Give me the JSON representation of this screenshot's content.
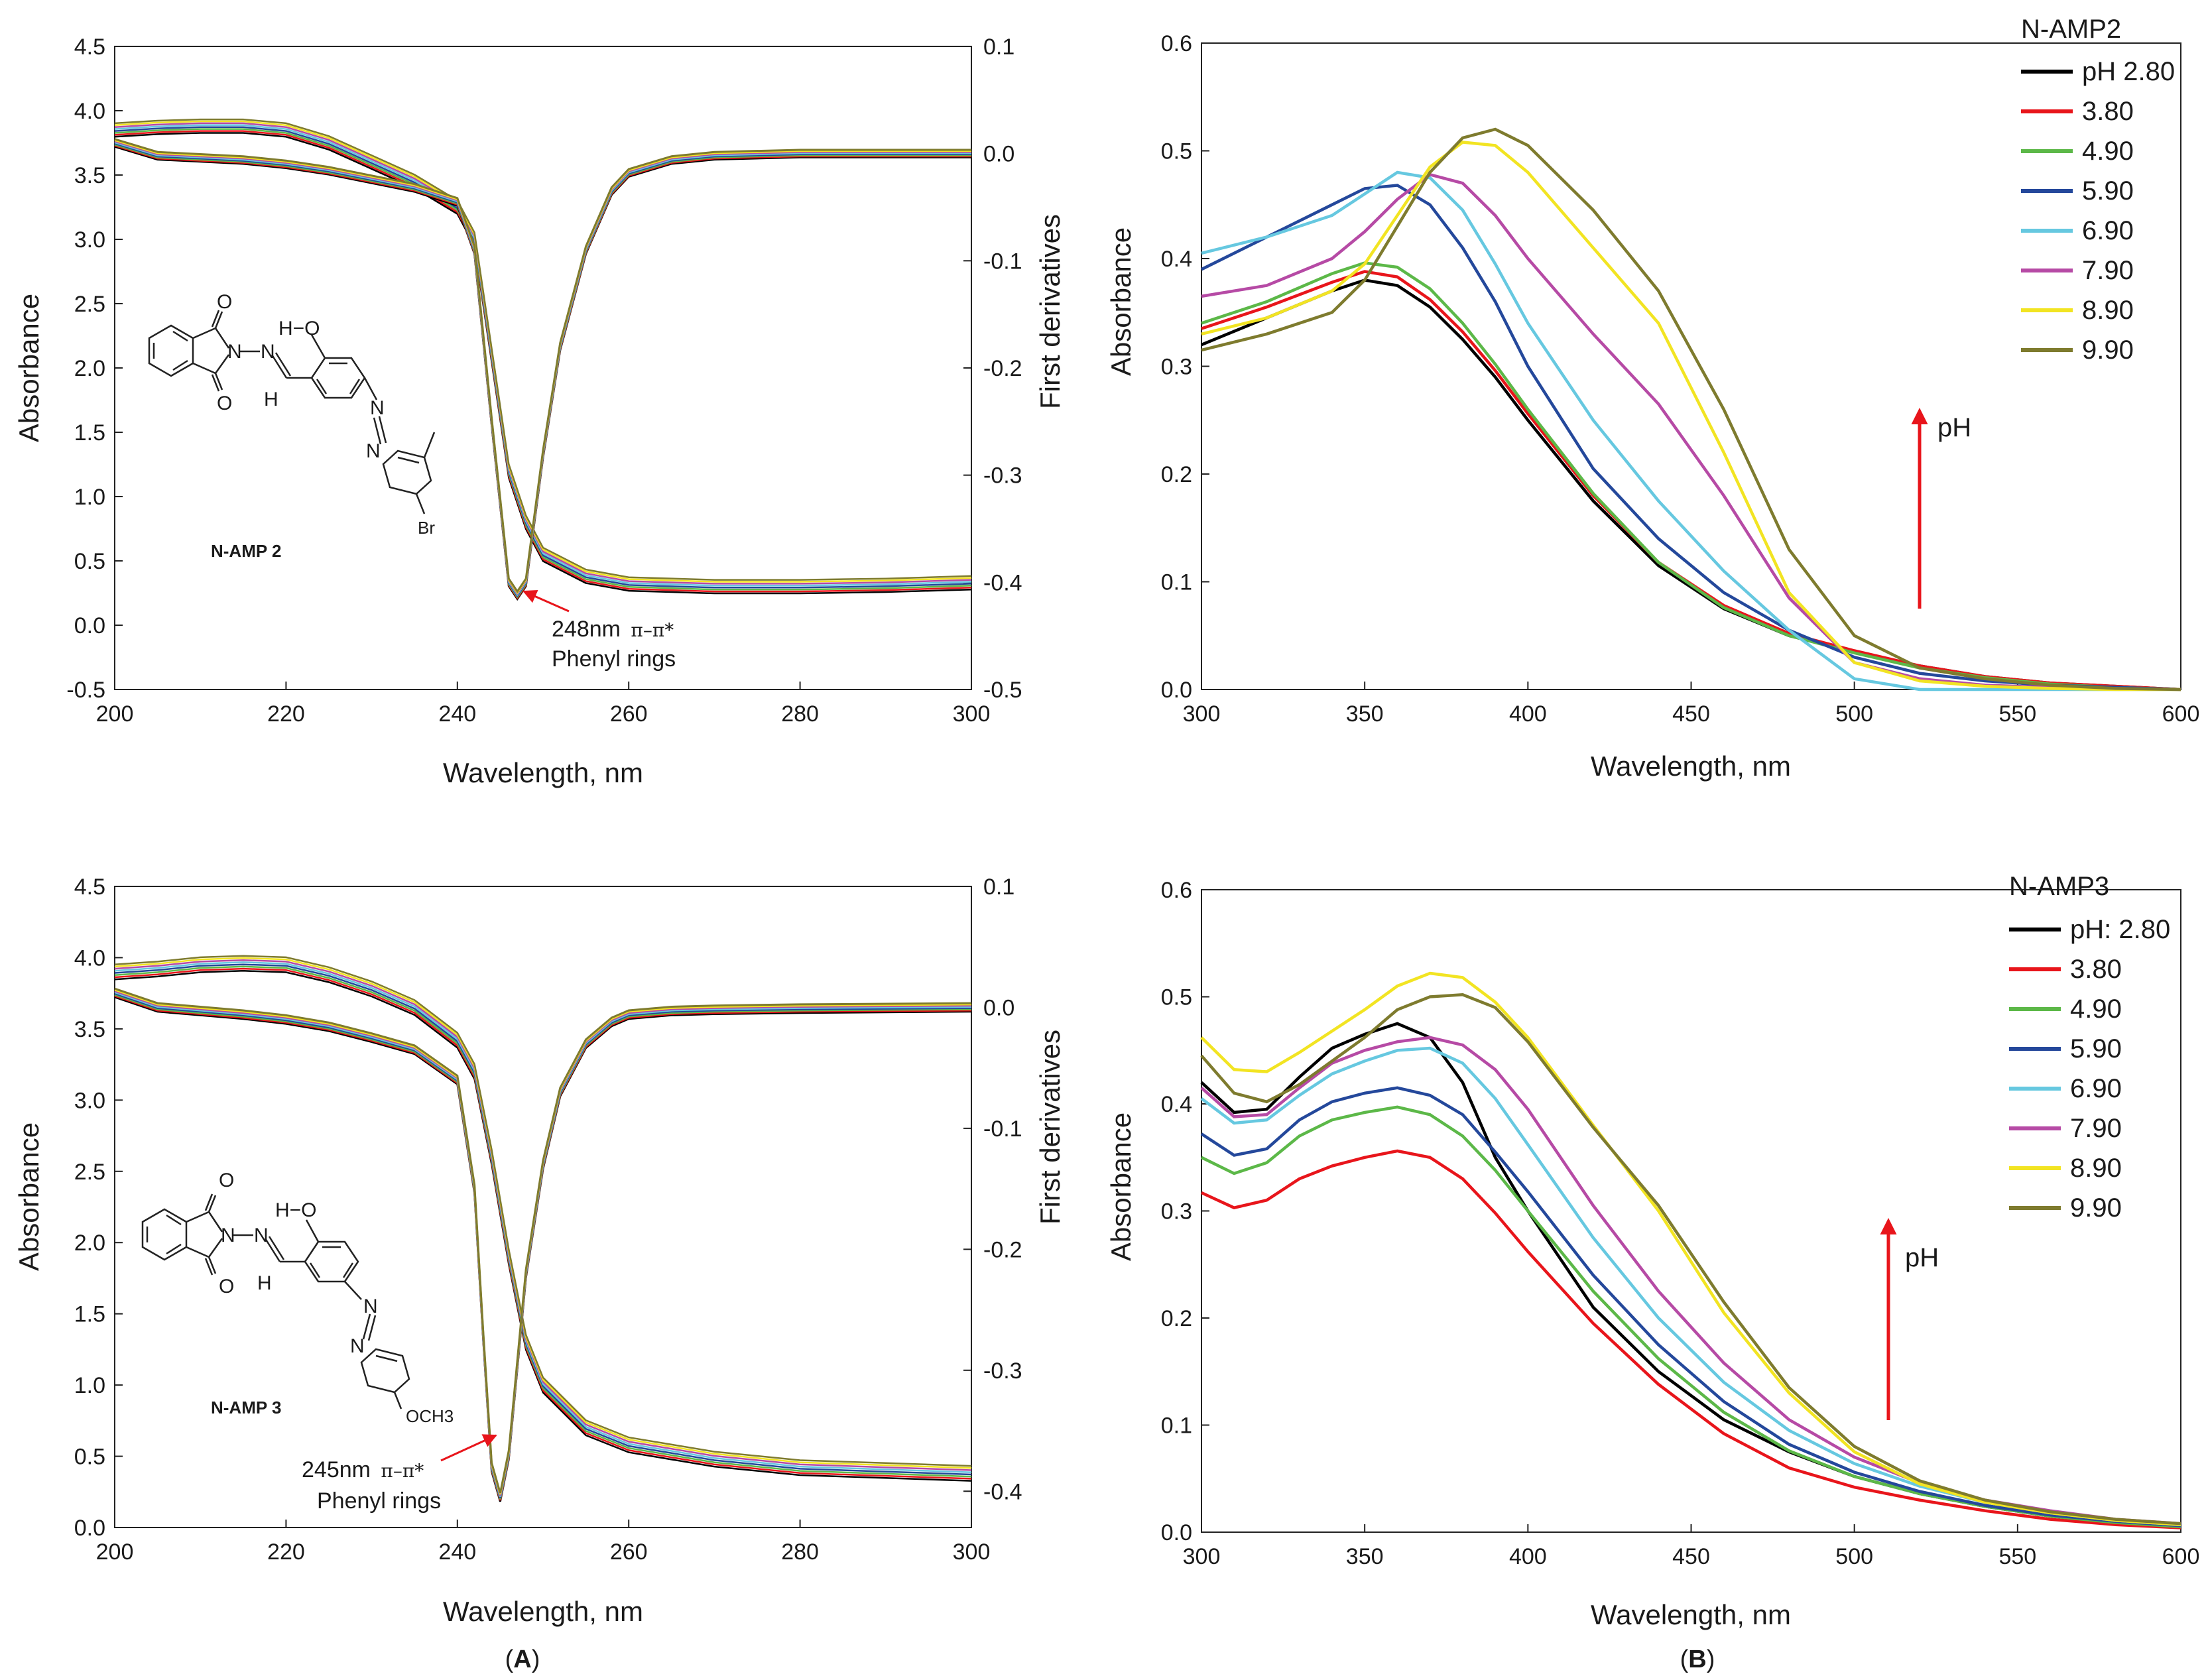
{
  "figure_captions": {
    "left": "(A)",
    "right": "(B)",
    "left_letter": "A",
    "right_letter": "B"
  },
  "colors": {
    "ph_series": [
      "#000000",
      "#e8151b",
      "#5cb848",
      "#24489b",
      "#66c8e0",
      "#b64aa5",
      "#f2e422",
      "#7e7b2e"
    ],
    "arrow": "#e8151b"
  },
  "chart_data": [
    {
      "type": "line",
      "panel": "A-top",
      "xlabel": "Wavelength, nm",
      "ylabel": "Absorbance",
      "y2label": "First derivatives",
      "xlim": [
        200,
        300
      ],
      "ylim": [
        -0.5,
        4.5
      ],
      "y2lim": [
        -0.5,
        0.1
      ],
      "xticks": [
        "200",
        "220",
        "240",
        "260",
        "280",
        "300"
      ],
      "yticks": [
        "-0.5",
        "0.0",
        "0.5",
        "1.0",
        "1.5",
        "2.0",
        "2.5",
        "3.0",
        "3.5",
        "4.0",
        "4.5"
      ],
      "y2ticks": [
        "-0.5",
        "-0.4",
        "-0.3",
        "-0.2",
        "-0.1",
        "0.0",
        "0.1"
      ],
      "absorbance_x": [
        200,
        205,
        210,
        215,
        220,
        225,
        230,
        235,
        240,
        242,
        244,
        246,
        248,
        250,
        255,
        260,
        270,
        280,
        290,
        300
      ],
      "absorbance_y": [
        3.85,
        3.87,
        3.88,
        3.88,
        3.85,
        3.75,
        3.6,
        3.45,
        3.25,
        3.0,
        2.1,
        1.2,
        0.8,
        0.55,
        0.38,
        0.32,
        0.3,
        0.3,
        0.31,
        0.33
      ],
      "derivative_x": [
        200,
        205,
        210,
        215,
        220,
        225,
        230,
        235,
        240,
        242,
        244,
        246,
        247,
        248,
        250,
        252,
        255,
        258,
        260,
        265,
        270,
        280,
        300
      ],
      "derivative_y": [
        0.01,
        -0.002,
        -0.004,
        -0.006,
        -0.01,
        -0.016,
        -0.024,
        -0.032,
        -0.045,
        -0.09,
        -0.25,
        -0.4,
        -0.412,
        -0.4,
        -0.28,
        -0.18,
        -0.09,
        -0.035,
        -0.018,
        -0.006,
        -0.002,
        0.0,
        0.0
      ],
      "annotation": {
        "wavelength": "248nm",
        "transition": "π–π*",
        "label": "Phenyl rings",
        "x": 248,
        "y2": -0.41
      },
      "molecule": {
        "name": "N-AMP 2",
        "substituent": "Br",
        "oh": "H−O",
        "h": "H",
        "o1": "O",
        "o2": "O",
        "n": "N",
        "nn1": "N",
        "nn2": "N"
      }
    },
    {
      "type": "line",
      "panel": "B-top",
      "xlabel": "Wavelength, nm",
      "ylabel": "Absorbance",
      "xlim": [
        300,
        600
      ],
      "ylim": [
        0.0,
        0.6
      ],
      "xticks": [
        "300",
        "350",
        "400",
        "450",
        "500",
        "550",
        "600"
      ],
      "yticks": [
        "0.0",
        "0.1",
        "0.2",
        "0.3",
        "0.4",
        "0.5",
        "0.6"
      ],
      "legend_title": "N-AMP2",
      "arrow_label": "pH",
      "x": [
        300,
        320,
        340,
        350,
        360,
        370,
        380,
        390,
        400,
        420,
        440,
        460,
        480,
        500,
        520,
        540,
        560,
        580,
        600
      ],
      "series": [
        {
          "name": "pH 2.80",
          "values": [
            0.32,
            0.345,
            0.37,
            0.38,
            0.375,
            0.355,
            0.325,
            0.29,
            0.25,
            0.175,
            0.115,
            0.075,
            0.05,
            0.035,
            0.022,
            0.012,
            0.006,
            0.003,
            0.0
          ]
        },
        {
          "name": "3.80",
          "values": [
            0.335,
            0.355,
            0.378,
            0.388,
            0.383,
            0.362,
            0.332,
            0.296,
            0.256,
            0.18,
            0.118,
            0.078,
            0.052,
            0.036,
            0.022,
            0.012,
            0.006,
            0.003,
            0.0
          ]
        },
        {
          "name": "4.90",
          "values": [
            0.34,
            0.36,
            0.386,
            0.396,
            0.392,
            0.372,
            0.34,
            0.302,
            0.26,
            0.182,
            0.118,
            0.076,
            0.05,
            0.034,
            0.02,
            0.011,
            0.005,
            0.002,
            0.0
          ]
        },
        {
          "name": "5.90",
          "values": [
            0.39,
            0.42,
            0.45,
            0.465,
            0.468,
            0.45,
            0.41,
            0.36,
            0.3,
            0.205,
            0.14,
            0.09,
            0.055,
            0.03,
            0.015,
            0.008,
            0.004,
            0.002,
            0.0
          ]
        },
        {
          "name": "6.90",
          "values": [
            0.405,
            0.42,
            0.44,
            0.46,
            0.48,
            0.475,
            0.445,
            0.395,
            0.34,
            0.25,
            0.175,
            0.11,
            0.055,
            0.01,
            0.0,
            0.0,
            0.0,
            0.0,
            0.0
          ]
        },
        {
          "name": "7.90",
          "values": [
            0.365,
            0.375,
            0.4,
            0.425,
            0.455,
            0.478,
            0.47,
            0.44,
            0.4,
            0.33,
            0.265,
            0.18,
            0.085,
            0.025,
            0.01,
            0.004,
            0.002,
            0.001,
            0.0
          ]
        },
        {
          "name": "8.90",
          "values": [
            0.33,
            0.345,
            0.37,
            0.395,
            0.44,
            0.485,
            0.508,
            0.505,
            0.48,
            0.41,
            0.34,
            0.22,
            0.09,
            0.025,
            0.008,
            0.003,
            0.001,
            0.0,
            0.0
          ]
        },
        {
          "name": "9.90",
          "values": [
            0.315,
            0.33,
            0.35,
            0.38,
            0.43,
            0.48,
            0.512,
            0.52,
            0.505,
            0.445,
            0.37,
            0.26,
            0.13,
            0.05,
            0.02,
            0.01,
            0.004,
            0.001,
            0.0
          ]
        }
      ]
    },
    {
      "type": "line",
      "panel": "A-bottom",
      "xlabel": "Wavelength, nm",
      "ylabel": "Absorbance",
      "y2label": "First derivatives",
      "xlim": [
        200,
        300
      ],
      "ylim": [
        0.0,
        4.5
      ],
      "y2lim": [
        -0.43,
        0.1
      ],
      "xticks": [
        "200",
        "220",
        "240",
        "260",
        "280",
        "300"
      ],
      "yticks": [
        "0.0",
        "0.5",
        "1.0",
        "1.5",
        "2.0",
        "2.5",
        "3.0",
        "3.5",
        "4.0",
        "4.5"
      ],
      "y2ticks": [
        "-0.4",
        "-0.3",
        "-0.2",
        "-0.1",
        "0.0",
        "0.1"
      ],
      "absorbance_x": [
        200,
        205,
        210,
        215,
        220,
        225,
        230,
        235,
        240,
        242,
        244,
        246,
        248,
        250,
        255,
        260,
        270,
        280,
        290,
        300
      ],
      "absorbance_y": [
        3.9,
        3.92,
        3.95,
        3.96,
        3.95,
        3.88,
        3.78,
        3.65,
        3.42,
        3.2,
        2.6,
        1.9,
        1.3,
        1.0,
        0.7,
        0.58,
        0.48,
        0.42,
        0.4,
        0.38
      ],
      "derivative_x": [
        200,
        205,
        210,
        215,
        220,
        225,
        230,
        235,
        240,
        242,
        243,
        244,
        245,
        246,
        248,
        250,
        252,
        255,
        258,
        260,
        265,
        270,
        280,
        300
      ],
      "derivative_y": [
        0.012,
        0.0,
        -0.003,
        -0.006,
        -0.01,
        -0.016,
        -0.025,
        -0.035,
        -0.06,
        -0.15,
        -0.27,
        -0.38,
        -0.405,
        -0.37,
        -0.22,
        -0.13,
        -0.07,
        -0.03,
        -0.012,
        -0.006,
        -0.003,
        -0.002,
        -0.001,
        0.0
      ],
      "annotation": {
        "wavelength": "245nm",
        "transition": "π–π*",
        "label": "Phenyl rings",
        "x": 245,
        "y2": -0.405
      },
      "molecule": {
        "name": "N-AMP 3",
        "substituent": "OCH3",
        "oh": "H−O",
        "h": "H",
        "o1": "O",
        "o2": "O",
        "n": "N",
        "nn1": "N",
        "nn2": "N"
      }
    },
    {
      "type": "line",
      "panel": "B-bottom",
      "xlabel": "Wavelength, nm",
      "ylabel": "Absorbance",
      "xlim": [
        300,
        600
      ],
      "ylim": [
        0.0,
        0.6
      ],
      "xticks": [
        "300",
        "350",
        "400",
        "450",
        "500",
        "550",
        "600"
      ],
      "yticks": [
        "0.0",
        "0.1",
        "0.2",
        "0.3",
        "0.4",
        "0.5",
        "0.6"
      ],
      "legend_title": "N-AMP3",
      "arrow_label": "pH",
      "x": [
        300,
        310,
        320,
        330,
        340,
        350,
        360,
        370,
        380,
        390,
        400,
        420,
        440,
        460,
        480,
        500,
        520,
        540,
        560,
        580,
        600
      ],
      "series": [
        {
          "name": "pH: 2.80",
          "values": [
            0.42,
            0.392,
            0.395,
            0.425,
            0.452,
            0.465,
            0.475,
            0.462,
            0.42,
            0.35,
            0.3,
            0.21,
            0.15,
            0.105,
            0.075,
            0.052,
            0.036,
            0.024,
            0.015,
            0.009,
            0.005
          ]
        },
        {
          "name": "3.80",
          "values": [
            0.317,
            0.303,
            0.31,
            0.33,
            0.342,
            0.35,
            0.356,
            0.35,
            0.33,
            0.298,
            0.262,
            0.195,
            0.138,
            0.092,
            0.06,
            0.042,
            0.03,
            0.02,
            0.012,
            0.007,
            0.004
          ]
        },
        {
          "name": "4.90",
          "values": [
            0.35,
            0.335,
            0.345,
            0.37,
            0.385,
            0.392,
            0.397,
            0.39,
            0.37,
            0.338,
            0.3,
            0.225,
            0.162,
            0.112,
            0.076,
            0.052,
            0.036,
            0.024,
            0.015,
            0.009,
            0.005
          ]
        },
        {
          "name": "5.90",
          "values": [
            0.372,
            0.352,
            0.358,
            0.385,
            0.402,
            0.41,
            0.415,
            0.408,
            0.39,
            0.355,
            0.318,
            0.24,
            0.175,
            0.122,
            0.082,
            0.056,
            0.038,
            0.025,
            0.016,
            0.01,
            0.006
          ]
        },
        {
          "name": "6.90",
          "values": [
            0.405,
            0.382,
            0.385,
            0.408,
            0.428,
            0.44,
            0.45,
            0.452,
            0.438,
            0.405,
            0.362,
            0.275,
            0.2,
            0.14,
            0.095,
            0.064,
            0.043,
            0.028,
            0.018,
            0.011,
            0.007
          ]
        },
        {
          "name": "7.90",
          "values": [
            0.415,
            0.388,
            0.39,
            0.415,
            0.438,
            0.45,
            0.458,
            0.462,
            0.455,
            0.432,
            0.395,
            0.305,
            0.225,
            0.158,
            0.105,
            0.07,
            0.046,
            0.03,
            0.02,
            0.012,
            0.008
          ]
        },
        {
          "name": "8.90",
          "values": [
            0.462,
            0.432,
            0.43,
            0.448,
            0.468,
            0.488,
            0.51,
            0.522,
            0.518,
            0.495,
            0.462,
            0.38,
            0.3,
            0.205,
            0.13,
            0.075,
            0.045,
            0.028,
            0.018,
            0.011,
            0.007
          ]
        },
        {
          "name": "9.90",
          "values": [
            0.445,
            0.41,
            0.402,
            0.418,
            0.44,
            0.462,
            0.488,
            0.5,
            0.502,
            0.49,
            0.458,
            0.378,
            0.305,
            0.215,
            0.135,
            0.08,
            0.048,
            0.03,
            0.019,
            0.012,
            0.008
          ]
        }
      ]
    }
  ]
}
